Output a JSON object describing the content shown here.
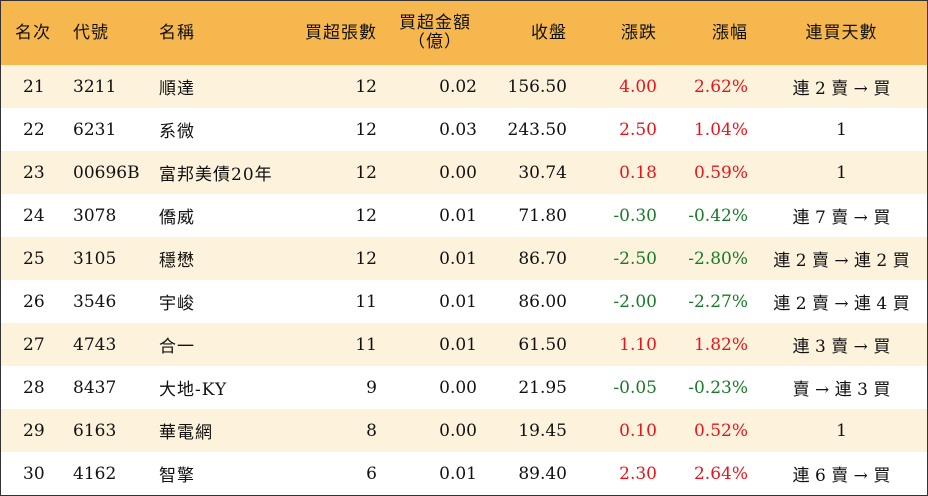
{
  "header": {
    "rank": "名次",
    "code": "代號",
    "name": "名稱",
    "net_buy_lots": "買超張數",
    "net_buy_amount_line1": "買超金額",
    "net_buy_amount_line2": "（億）",
    "close": "收盤",
    "change": "漲跌",
    "change_pct": "漲幅",
    "consecutive_days": "連買天數"
  },
  "rows": [
    {
      "rank": "21",
      "code": "3211",
      "name": "順達",
      "lots": "12",
      "amount": "0.02",
      "close": "156.50",
      "change": "4.00",
      "pct": "2.62%",
      "days": "連 2 賣 → 買",
      "dir": "up"
    },
    {
      "rank": "22",
      "code": "6231",
      "name": "系微",
      "lots": "12",
      "amount": "0.03",
      "close": "243.50",
      "change": "2.50",
      "pct": "1.04%",
      "days": "1",
      "dir": "up"
    },
    {
      "rank": "23",
      "code": "00696B",
      "name": "富邦美債20年",
      "lots": "12",
      "amount": "0.00",
      "close": "30.74",
      "change": "0.18",
      "pct": "0.59%",
      "days": "1",
      "dir": "up"
    },
    {
      "rank": "24",
      "code": "3078",
      "name": "僑威",
      "lots": "12",
      "amount": "0.01",
      "close": "71.80",
      "change": "-0.30",
      "pct": "-0.42%",
      "days": "連 7 賣 → 買",
      "dir": "down"
    },
    {
      "rank": "25",
      "code": "3105",
      "name": "穩懋",
      "lots": "12",
      "amount": "0.01",
      "close": "86.70",
      "change": "-2.50",
      "pct": "-2.80%",
      "days": "連 2 賣 → 連 2 買",
      "dir": "down"
    },
    {
      "rank": "26",
      "code": "3546",
      "name": "宇峻",
      "lots": "11",
      "amount": "0.01",
      "close": "86.00",
      "change": "-2.00",
      "pct": "-2.27%",
      "days": "連 2 賣 → 連 4 買",
      "dir": "down"
    },
    {
      "rank": "27",
      "code": "4743",
      "name": "合一",
      "lots": "11",
      "amount": "0.01",
      "close": "61.50",
      "change": "1.10",
      "pct": "1.82%",
      "days": "連 3 賣 → 買",
      "dir": "up"
    },
    {
      "rank": "28",
      "code": "8437",
      "name": "大地-KY",
      "lots": "9",
      "amount": "0.00",
      "close": "21.95",
      "change": "-0.05",
      "pct": "-0.23%",
      "days": "賣 → 連 3 買",
      "dir": "down"
    },
    {
      "rank": "29",
      "code": "6163",
      "name": "華電網",
      "lots": "8",
      "amount": "0.00",
      "close": "19.45",
      "change": "0.10",
      "pct": "0.52%",
      "days": "1",
      "dir": "up"
    },
    {
      "rank": "30",
      "code": "4162",
      "name": "智擎",
      "lots": "6",
      "amount": "0.01",
      "close": "89.40",
      "change": "2.30",
      "pct": "2.64%",
      "days": "連 6 賣 → 買",
      "dir": "up"
    }
  ],
  "colors": {
    "header_bg": "#f6b74f",
    "odd_row_bg": "#fdf2dc",
    "up": "#e8141c",
    "down": "#1a7a2a"
  }
}
